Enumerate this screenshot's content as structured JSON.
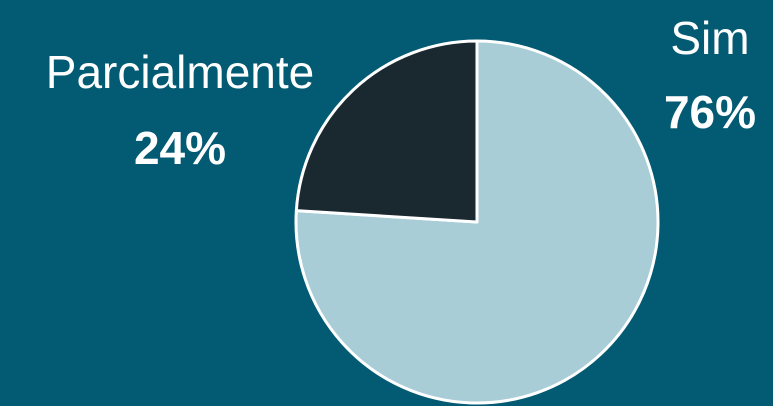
{
  "chart_data": {
    "type": "pie",
    "categories": [
      "Sim",
      "Parcialmente"
    ],
    "values": [
      76,
      24
    ],
    "value_labels": [
      "76%",
      "24%"
    ],
    "colors": [
      "#a8cdd7",
      "#1a2830"
    ]
  }
}
